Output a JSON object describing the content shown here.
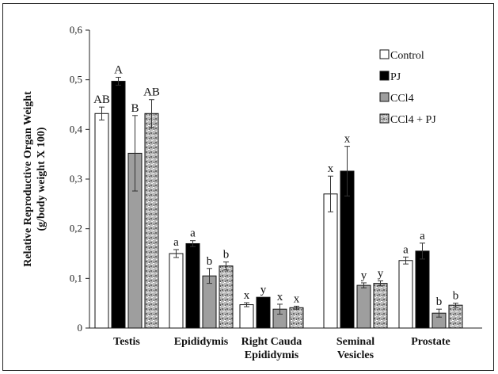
{
  "chart_data": {
    "type": "bar",
    "ylabel_line1": "Relative Reproductive Organ Weight",
    "ylabel_line2": "(g/body weight X 100)",
    "ylim": [
      0,
      0.6
    ],
    "yticks": [
      "0",
      "0,1",
      "0,2",
      "0,3",
      "0,4",
      "0,5",
      "0,6"
    ],
    "categories": [
      [
        "Testis"
      ],
      [
        "Epididymis"
      ],
      [
        "Right Cauda",
        "Epididymis"
      ],
      [
        "Seminal",
        "Vesicles"
      ],
      [
        "Prostate"
      ]
    ],
    "series": [
      {
        "name": "Control",
        "fill": "#ffffff",
        "pattern": "none",
        "values": [
          0.432,
          0.15,
          0.047,
          0.27,
          0.136
        ],
        "errors": [
          0.013,
          0.008,
          0.004,
          0.036,
          0.007
        ],
        "labels": [
          "AB",
          "a",
          "x",
          "x",
          "a"
        ]
      },
      {
        "name": "PJ",
        "fill": "#000000",
        "pattern": "none",
        "values": [
          0.497,
          0.17,
          0.062,
          0.316,
          0.155
        ],
        "errors": [
          0.008,
          0.006,
          0.0,
          0.05,
          0.016
        ],
        "labels": [
          "A",
          "a",
          "y",
          "x",
          "a"
        ]
      },
      {
        "name": "CCl4",
        "fill": "#9e9e9e",
        "pattern": "none",
        "values": [
          0.352,
          0.105,
          0.038,
          0.086,
          0.03
        ],
        "errors": [
          0.076,
          0.015,
          0.01,
          0.005,
          0.008
        ],
        "labels": [
          "B",
          "b",
          "x",
          "y",
          "b"
        ]
      },
      {
        "name": "CCl4 + PJ",
        "fill": "#b5b5b5",
        "pattern": "speckle",
        "values": [
          0.432,
          0.125,
          0.041,
          0.09,
          0.046
        ],
        "errors": [
          0.028,
          0.008,
          0.003,
          0.005,
          0.004
        ],
        "labels": [
          "AB",
          "b",
          "x",
          "y",
          "b"
        ]
      }
    ],
    "legend_position": "top-right",
    "grid": false
  }
}
